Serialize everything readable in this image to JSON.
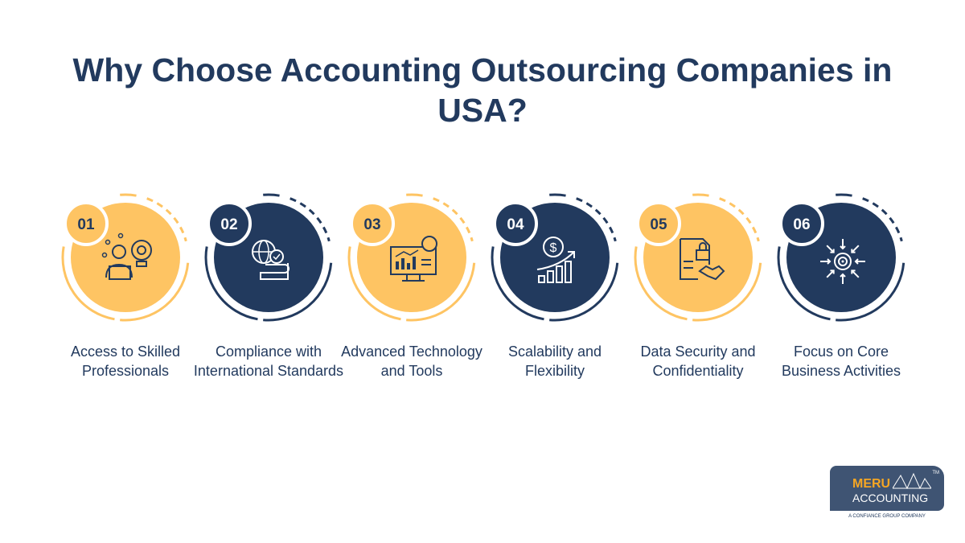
{
  "title": {
    "line1": "Why Choose Accounting Outsourcing Companies in",
    "line2": "USA?"
  },
  "colors": {
    "yellow": "#fec463",
    "navy": "#223a5e",
    "white": "#ffffff"
  },
  "items": [
    {
      "number": "01",
      "label": "Access to Skilled Professionals",
      "icon": "person-lightbulb-gear-icon",
      "theme": "yellow"
    },
    {
      "number": "02",
      "label": "Compliance with International Standards",
      "icon": "globe-certificate-icon",
      "theme": "navy"
    },
    {
      "number": "03",
      "label": "Advanced Technology and Tools",
      "icon": "monitor-chart-icon",
      "theme": "yellow"
    },
    {
      "number": "04",
      "label": "Scalability and Flexibility",
      "icon": "dollar-growth-chart-icon",
      "theme": "navy"
    },
    {
      "number": "05",
      "label": "Data Security and Confidentiality",
      "icon": "document-lock-handshake-icon",
      "theme": "yellow"
    },
    {
      "number": "06",
      "label": "Focus on Core Business Activities",
      "icon": "target-arrows-icon",
      "theme": "navy"
    }
  ],
  "logo": {
    "line1": "MERU",
    "line2": "ACCOUNTING",
    "tm": "TM",
    "tagline": "A CONFIANCE GROUP COMPANY"
  }
}
